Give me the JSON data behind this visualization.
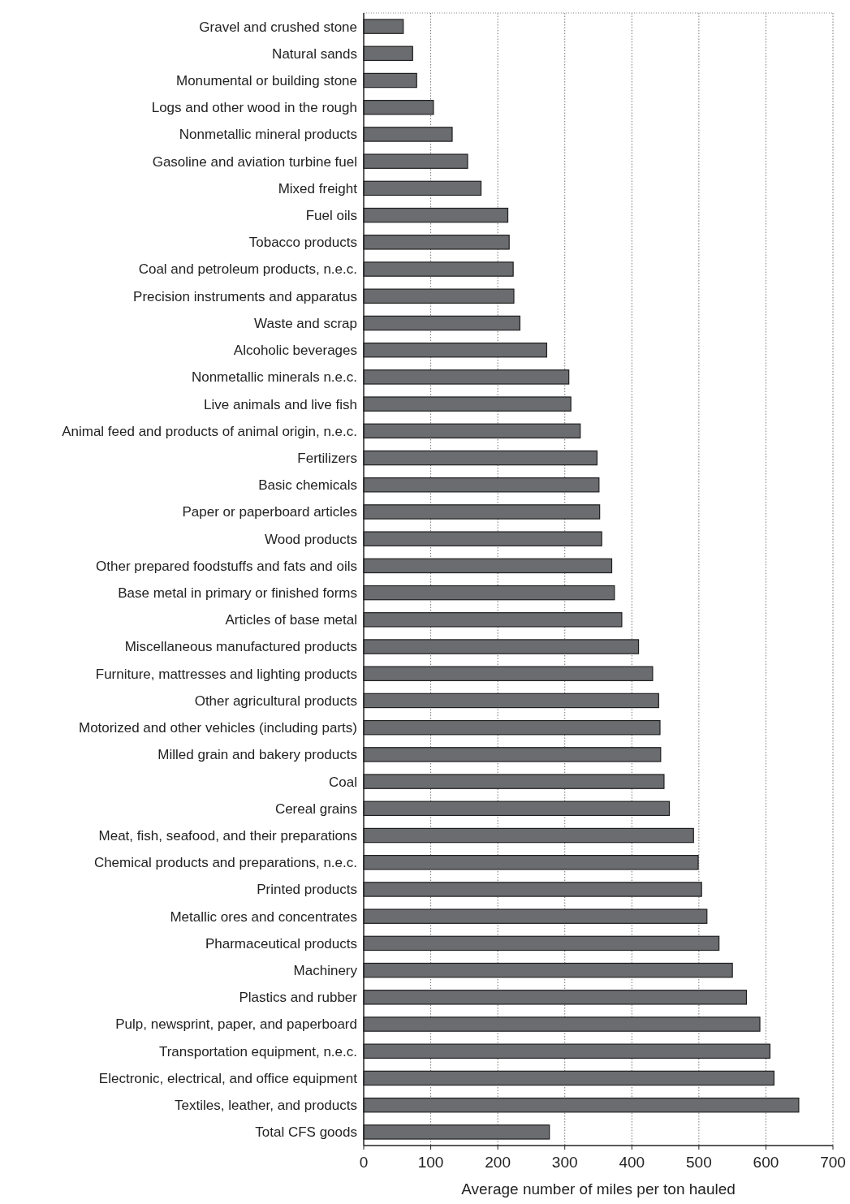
{
  "chart_data": {
    "type": "bar",
    "orientation": "horizontal",
    "xlabel": "Average number of miles per ton hauled",
    "categories": [
      "Gravel and crushed stone",
      "Natural sands",
      "Monumental or building stone",
      "Logs and other wood in the rough",
      "Nonmetallic mineral products",
      "Gasoline and aviation turbine fuel",
      "Mixed freight",
      "Fuel oils",
      "Tobacco products",
      "Coal and petroleum products, n.e.c.",
      "Precision instruments and apparatus",
      "Waste and scrap",
      "Alcoholic beverages",
      "Nonmetallic minerals n.e.c.",
      "Live animals and live fish",
      "Animal feed and products of animal origin, n.e.c.",
      "Fertilizers",
      "Basic chemicals",
      "Paper or paperboard articles",
      "Wood products",
      "Other prepared foodstuffs and fats and oils",
      "Base metal in primary or finished forms",
      "Articles of base metal",
      "Miscellaneous manufactured products",
      "Furniture, mattresses and lighting products",
      "Other agricultural products",
      "Motorized and other vehicles (including parts)",
      "Milled grain and bakery products",
      "Coal",
      "Cereal grains",
      "Meat, fish, seafood, and their preparations",
      "Chemical products and preparations, n.e.c.",
      "Printed products",
      "Metallic ores and concentrates",
      "Pharmaceutical products",
      "Machinery",
      "Plastics and rubber",
      "Pulp, newsprint, paper, and paperboard",
      "Transportation equipment, n.e.c.",
      "Electronic, electrical, and office equipment",
      "Textiles, leather, and products",
      "Total CFS goods"
    ],
    "values": [
      59,
      73,
      79,
      104,
      132,
      155,
      175,
      215,
      217,
      223,
      224,
      233,
      273,
      306,
      309,
      323,
      348,
      351,
      352,
      355,
      370,
      374,
      385,
      410,
      431,
      440,
      442,
      443,
      448,
      456,
      492,
      499,
      504,
      512,
      530,
      550,
      571,
      591,
      606,
      612,
      649,
      277
    ],
    "color": "#6b6c70",
    "xlim": [
      0,
      700
    ],
    "xticks": [
      0,
      100,
      200,
      300,
      400,
      500,
      600,
      700
    ],
    "grid": "x"
  }
}
